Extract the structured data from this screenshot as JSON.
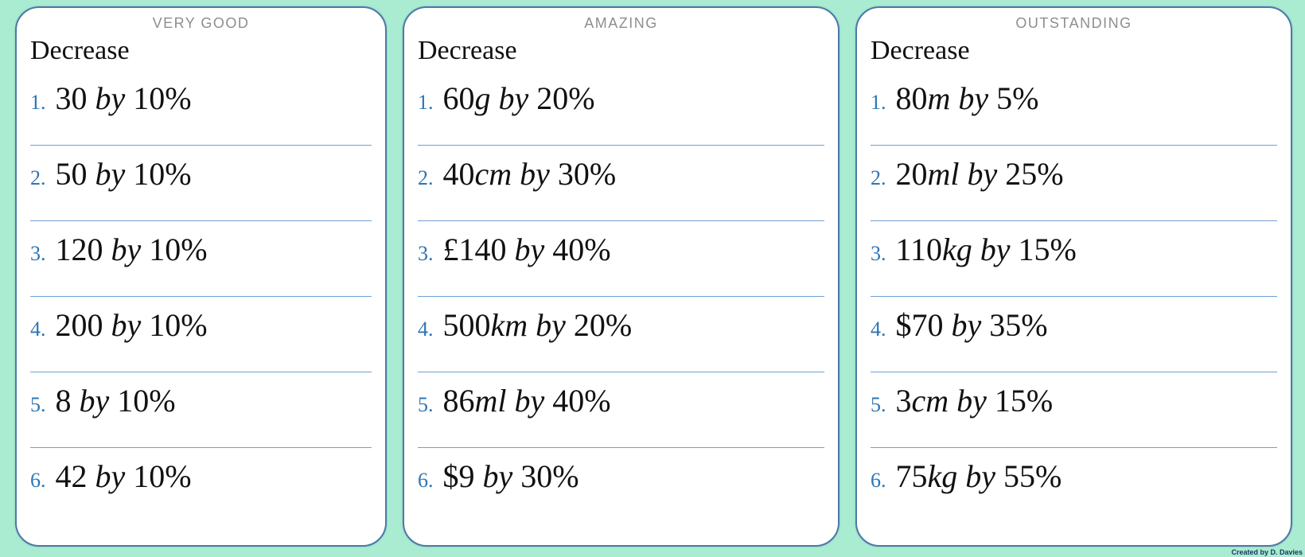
{
  "page": {
    "background_color": "#a9ecd1",
    "credit": "Created by D. Davies"
  },
  "labels": {
    "by": "by"
  },
  "colors": {
    "card_border": "#4c79a8",
    "divider_blue": "#6fa0d3",
    "number_blue": "#2e75b6",
    "badge_gray": "#8e8e8e",
    "text_black": "#111111",
    "credit_navy": "#16365c"
  },
  "cards": [
    {
      "badge": "VERY GOOD",
      "title": "Decrease",
      "items": [
        {
          "num": "1.",
          "value": "30",
          "unit": "",
          "pct": "10%"
        },
        {
          "num": "2.",
          "value": "50",
          "unit": "",
          "pct": "10%"
        },
        {
          "num": "3.",
          "value": "120",
          "unit": "",
          "pct": "10%"
        },
        {
          "num": "4.",
          "value": "200",
          "unit": "",
          "pct": "10%"
        },
        {
          "num": "5.",
          "value": "8",
          "unit": "",
          "pct": "10%"
        },
        {
          "num": "6.",
          "value": "42",
          "unit": "",
          "pct": "10%"
        }
      ]
    },
    {
      "badge": "AMAZING",
      "title": "Decrease",
      "items": [
        {
          "num": "1.",
          "value": "60",
          "unit": "g",
          "pct": "20%"
        },
        {
          "num": "2.",
          "value": "40",
          "unit": "cm",
          "pct": "30%"
        },
        {
          "num": "3.",
          "value": "£140",
          "unit": "",
          "pct": "40%"
        },
        {
          "num": "4.",
          "value": "500",
          "unit": "km",
          "pct": "20%"
        },
        {
          "num": "5.",
          "value": "86",
          "unit": "ml",
          "pct": "40%"
        },
        {
          "num": "6.",
          "value": "$9",
          "unit": "",
          "pct": "30%"
        }
      ]
    },
    {
      "badge": "OUTSTANDING",
      "title": "Decrease",
      "items": [
        {
          "num": "1.",
          "value": "80",
          "unit": "m",
          "pct": "5%"
        },
        {
          "num": "2.",
          "value": "20",
          "unit": "ml",
          "pct": "25%"
        },
        {
          "num": "3.",
          "value": "110",
          "unit": "kg",
          "pct": "15%"
        },
        {
          "num": "4.",
          "value": "$70",
          "unit": "",
          "pct": "35%"
        },
        {
          "num": "5.",
          "value": "3",
          "unit": "cm",
          "pct": "15%"
        },
        {
          "num": "6.",
          "value": "75",
          "unit": "kg",
          "pct": "55%"
        }
      ]
    }
  ]
}
